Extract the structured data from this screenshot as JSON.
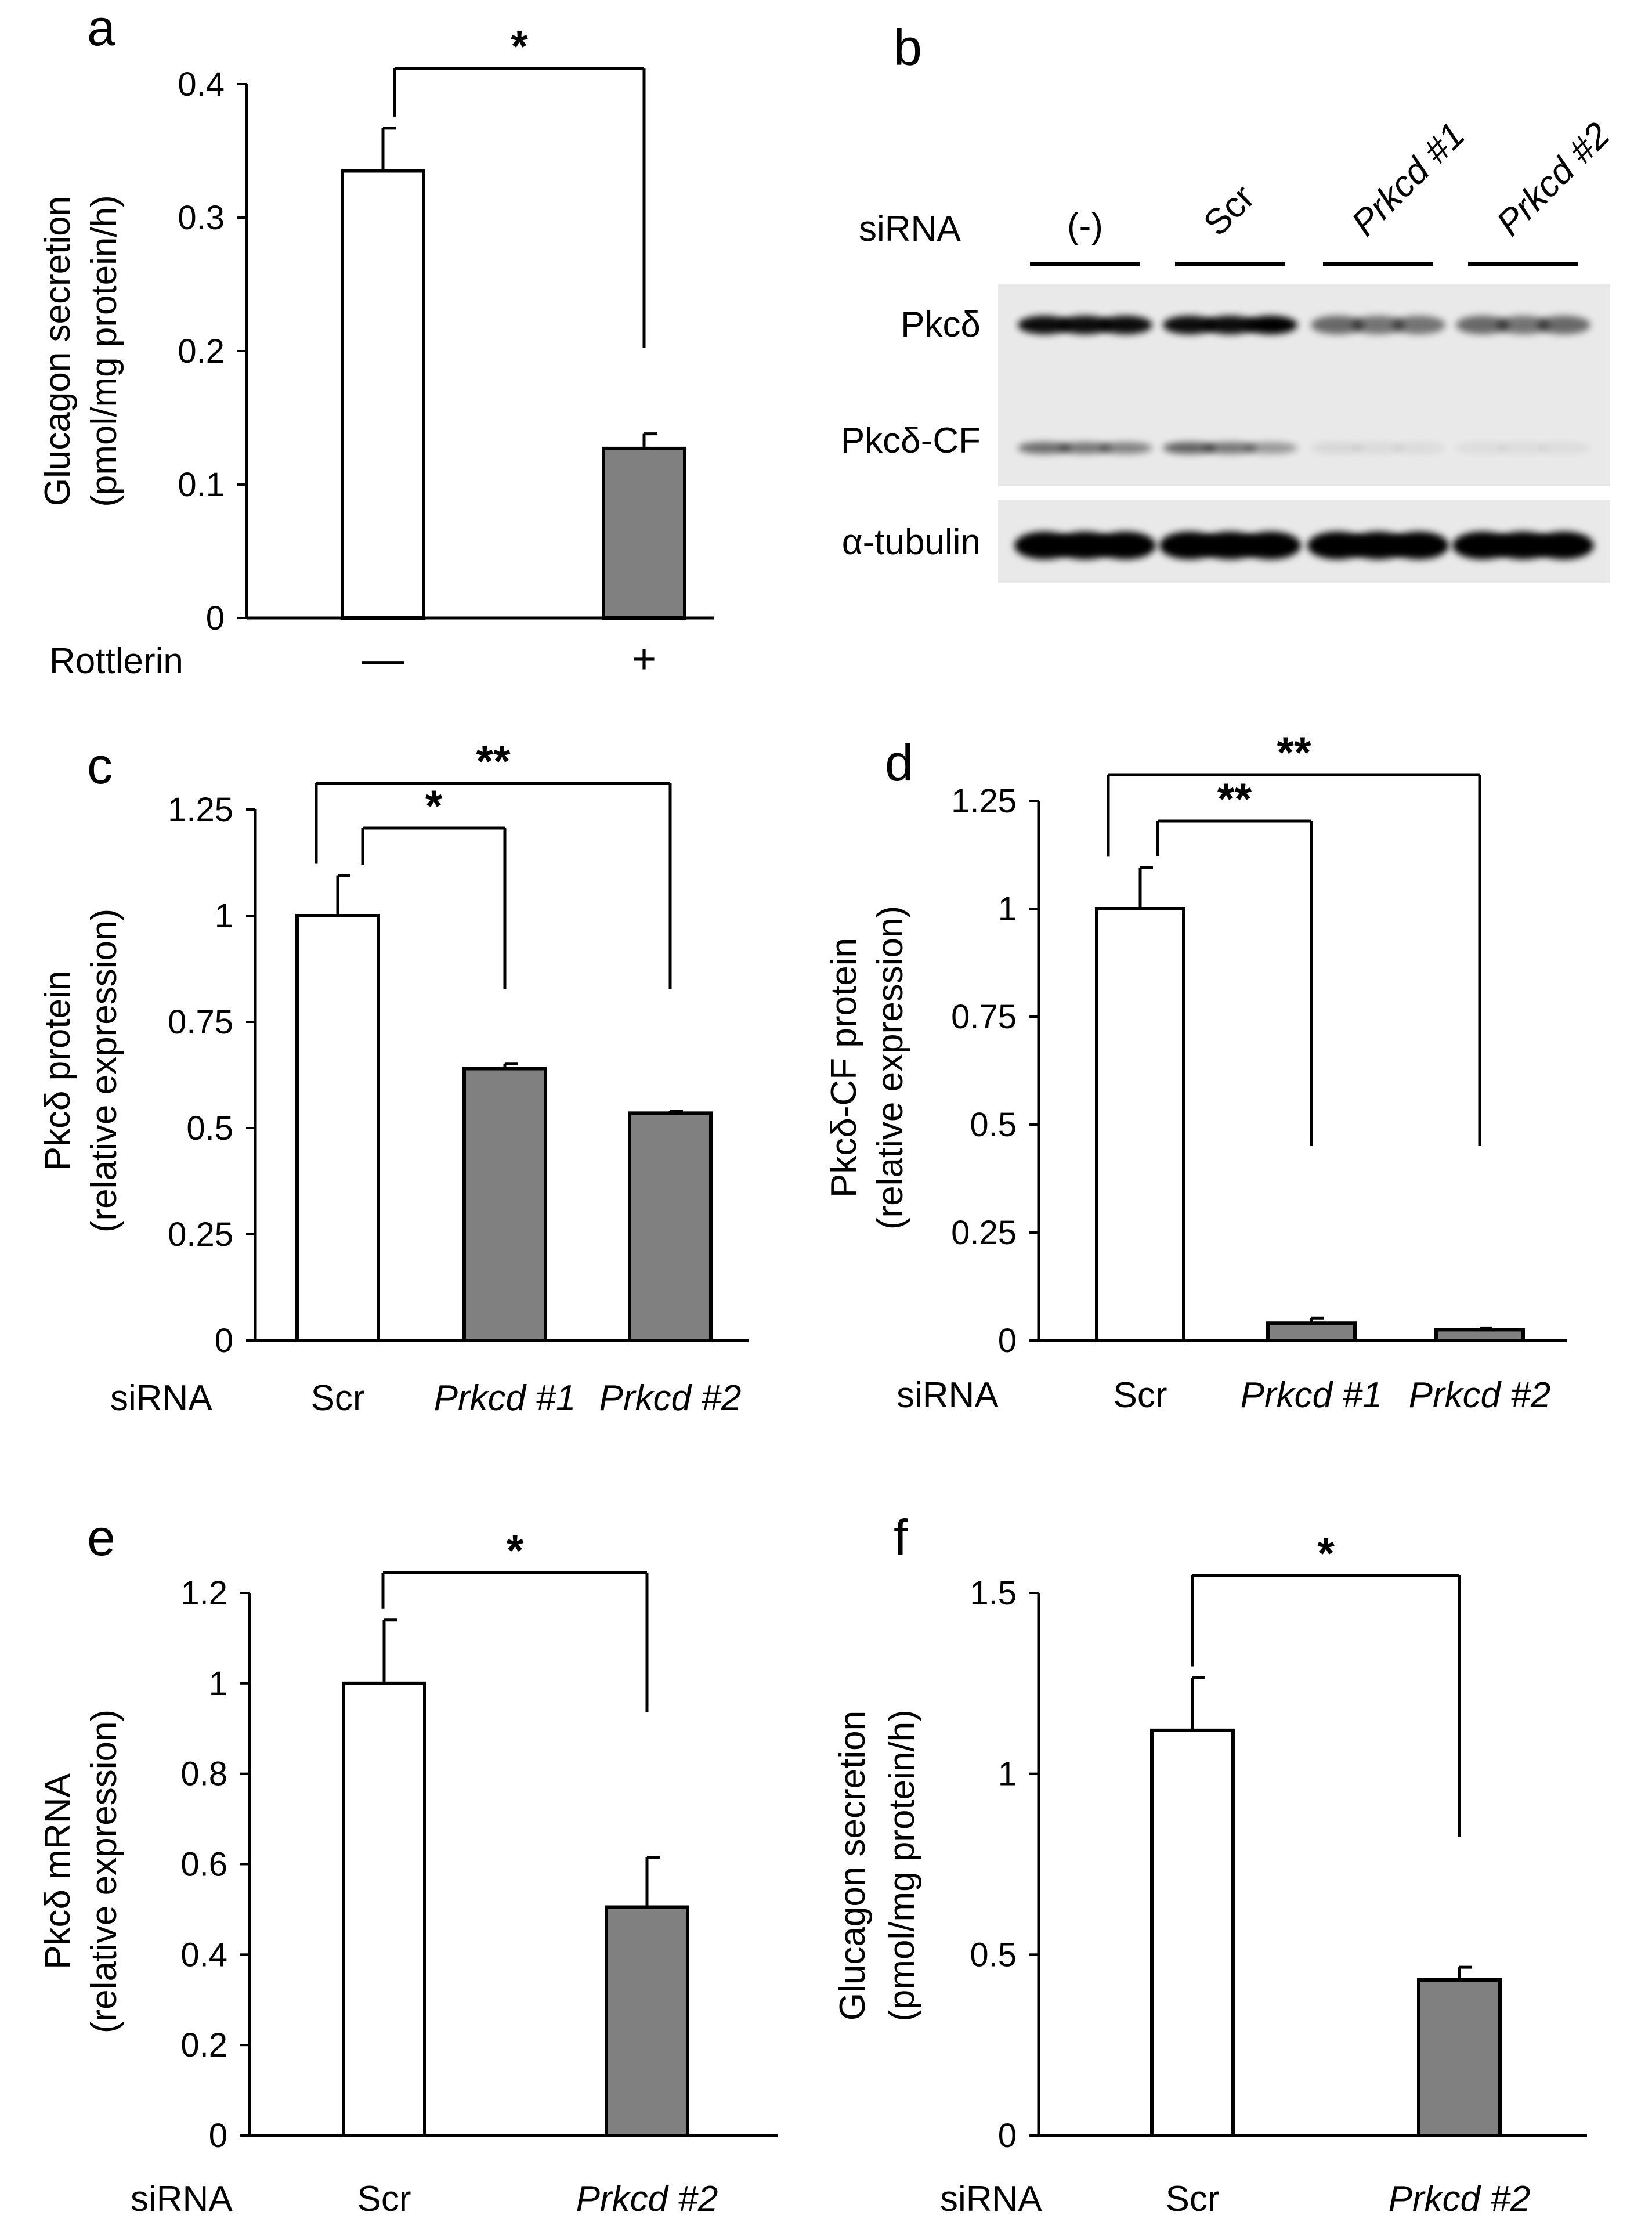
{
  "chart_data": [
    {
      "panel": "a",
      "type": "bar",
      "ylabel": [
        "Glucagon secretion",
        "(pmol/mg protein/h)"
      ],
      "ylim": [
        0,
        0.4
      ],
      "yticks": [
        "0",
        "0.1",
        "0.2",
        "0.3",
        "0.4"
      ],
      "xlabel_row": "Rottlerin",
      "categories": [
        "—",
        "+"
      ],
      "values": [
        0.335,
        0.127
      ],
      "errors": [
        0.032,
        0.011
      ],
      "fill": [
        "#ffffff",
        "#808080"
      ],
      "brackets": [
        {
          "from": 0,
          "to": 1,
          "label": "*"
        }
      ]
    },
    {
      "panel": "c",
      "type": "bar",
      "ylabel": [
        "Pkcδ protein",
        "(relative expression)"
      ],
      "ylim": [
        0,
        1.25
      ],
      "yticks": [
        "0",
        "0.25",
        "0.5",
        "0.75",
        "1",
        "1.25"
      ],
      "xlabel_row": "siRNA",
      "categories": [
        "Scr",
        "Prkcd #1",
        "Prkcd #2"
      ],
      "values": [
        1.0,
        0.64,
        0.535
      ],
      "errors": [
        0.095,
        0.012,
        0.005
      ],
      "fill": [
        "#ffffff",
        "#808080",
        "#808080"
      ],
      "brackets": [
        {
          "from": 0,
          "to": 1,
          "label": "*"
        },
        {
          "from": 0,
          "to": 2,
          "label": "**"
        }
      ]
    },
    {
      "panel": "d",
      "type": "bar",
      "ylabel": [
        "Pkcδ-CF protein",
        "(relative expression)"
      ],
      "ylim": [
        0,
        1.25
      ],
      "yticks": [
        "0",
        "0.25",
        "0.5",
        "0.75",
        "1",
        "1.25"
      ],
      "xlabel_row": "siRNA",
      "categories": [
        "Scr",
        "Prkcd #1",
        "Prkcd #2"
      ],
      "values": [
        1.0,
        0.04,
        0.025
      ],
      "errors": [
        0.095,
        0.012,
        0.004
      ],
      "fill": [
        "#ffffff",
        "#808080",
        "#808080"
      ],
      "brackets": [
        {
          "from": 0,
          "to": 1,
          "label": "**"
        },
        {
          "from": 0,
          "to": 2,
          "label": "**"
        }
      ]
    },
    {
      "panel": "e",
      "type": "bar",
      "ylabel": [
        "Pkcδ mRNA",
        "(relative expression)"
      ],
      "ylim": [
        0,
        1.2
      ],
      "yticks": [
        "0",
        "0.2",
        "0.4",
        "0.6",
        "0.8",
        "1",
        "1.2"
      ],
      "xlabel_row": "siRNA",
      "categories": [
        "Scr",
        "Prkcd #2"
      ],
      "values": [
        1.0,
        0.505
      ],
      "errors": [
        0.14,
        0.11
      ],
      "fill": [
        "#ffffff",
        "#808080"
      ],
      "brackets": [
        {
          "from": 0,
          "to": 1,
          "label": "*"
        }
      ]
    },
    {
      "panel": "f",
      "type": "bar",
      "ylabel": [
        "Glucagon secretion",
        "(pmol/mg protein/h)"
      ],
      "ylim": [
        0,
        1.5
      ],
      "yticks": [
        "0",
        "0.5",
        "1",
        "1.5"
      ],
      "xlabel_row": "siRNA",
      "categories": [
        "Scr",
        "Prkcd #2"
      ],
      "values": [
        1.12,
        0.43
      ],
      "errors": [
        0.145,
        0.035
      ],
      "fill": [
        "#ffffff",
        "#808080"
      ],
      "brackets": [
        {
          "from": 0,
          "to": 1,
          "label": "*"
        }
      ]
    }
  ],
  "blot": {
    "panel": "b",
    "row_label": "siRNA",
    "lane_groups": [
      "(-)",
      "Scr",
      "Prkcd #1",
      "Prkcd #2"
    ],
    "bands": [
      "Pkcδ",
      "Pkcδ-CF",
      "α-tubulin"
    ],
    "lanes_per_group": 3,
    "pkcd_intensity": [
      0.95,
      0.95,
      0.95,
      0.95,
      0.95,
      1.0,
      0.55,
      0.5,
      0.5,
      0.55,
      0.5,
      0.55
    ],
    "pkcd_cf_intensity": [
      0.55,
      0.5,
      0.45,
      0.6,
      0.5,
      0.35,
      0.08,
      0.06,
      0.06,
      0.05,
      0.05,
      0.05
    ],
    "tubulin_intensity": [
      1,
      1,
      1,
      1,
      1,
      1,
      1,
      1,
      1,
      1,
      1,
      1
    ]
  }
}
